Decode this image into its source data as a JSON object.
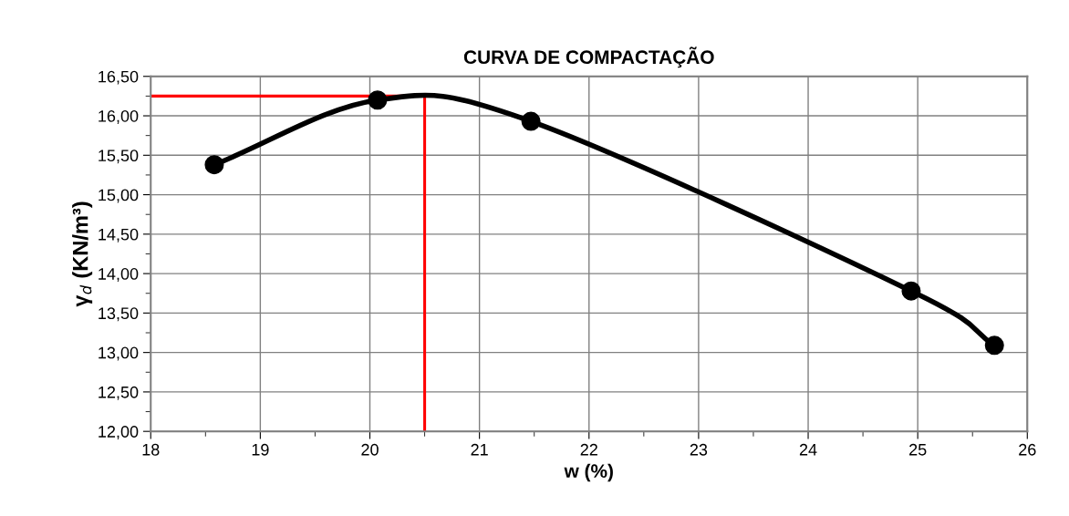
{
  "chart_data": {
    "type": "line",
    "title": "CURVA DE COMPACTAÇÃO",
    "xlabel": "w (%)",
    "ylabel": "γ$_{d}$ (KN/m³)",
    "x": [
      18.58,
      20.07,
      21.47,
      24.94,
      25.7
    ],
    "series": [
      {
        "color": "#000000",
        "values": [
          15.38,
          16.2,
          15.93,
          13.78,
          13.09
        ]
      }
    ],
    "marker": "circle",
    "line_style": "solid",
    "grid": true,
    "legend": false,
    "xlim": [
      18,
      26
    ],
    "xticks": [
      18,
      19,
      20,
      21,
      22,
      23,
      24,
      25,
      26
    ],
    "ylim": [
      12,
      16.5
    ],
    "yticks": [
      {
        "value": 12,
        "label": "12,00"
      },
      {
        "value": 12.5,
        "label": "12,50"
      },
      {
        "value": 13,
        "label": "13,00"
      },
      {
        "value": 13.5,
        "label": "13,50"
      },
      {
        "value": 14,
        "label": "14,00"
      },
      {
        "value": 14.5,
        "label": "14,50"
      },
      {
        "value": 15,
        "label": "15,00"
      },
      {
        "value": 15.5,
        "label": "15,50"
      },
      {
        "value": 16,
        "label": "16,00"
      },
      {
        "value": 16.5,
        "label": "16,50"
      }
    ],
    "ref_lines": [
      {
        "axis": "x",
        "value": 20.5,
        "color": "#ff0000"
      },
      {
        "axis": "y",
        "value": 16.25,
        "color": "#ff0000"
      }
    ]
  }
}
